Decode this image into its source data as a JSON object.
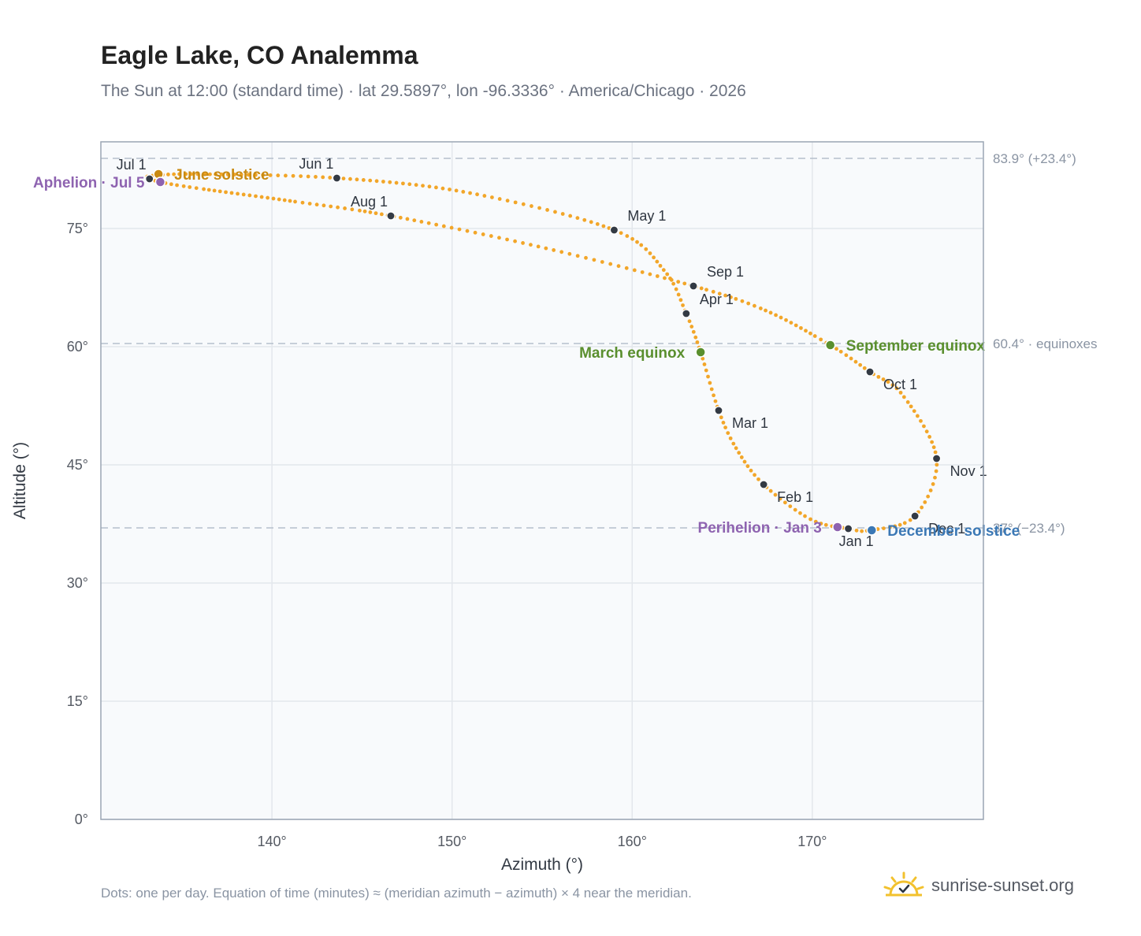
{
  "header": {
    "title": "Eagle Lake, CO Analemma",
    "subtitle": "The Sun at 12:00 (standard time) · lat 29.5897°, lon -96.3336° · America/Chicago · 2026"
  },
  "footer": {
    "note": "Dots: one per day. Equation of time (minutes) ≈ (meridian azimuth − azimuth) × 4 near the meridian.",
    "brand": "sunrise-sunset.org"
  },
  "colors": {
    "curve": "#f2a629",
    "month_marker": "#333a44",
    "solstice_june": "#c98a12",
    "equinox": "#5a8f2e",
    "solstice_december": "#3b78b5",
    "apsis": "#8e63b0",
    "grid": "#e3e7ec",
    "plot_background": "#f8fafc",
    "frame": "#9aa5b4"
  },
  "chart_data": {
    "type": "scatter",
    "xlabel": "Azimuth (°)",
    "ylabel": "Altitude (°)",
    "xlim": [
      130.5,
      179.5
    ],
    "ylim": [
      0,
      86
    ],
    "x_ticks": [
      140,
      150,
      160,
      170
    ],
    "x_tick_labels": [
      "140°",
      "150°",
      "160°",
      "170°"
    ],
    "y_ticks": [
      0,
      15,
      30,
      45,
      60,
      75
    ],
    "y_tick_labels": [
      "0°",
      "15°",
      "30°",
      "45°",
      "60°",
      "75°"
    ],
    "grid": true,
    "reference_lines": [
      {
        "y": 83.9,
        "label": "83.9° (+23.4°)"
      },
      {
        "y": 60.4,
        "label": "60.4° · equinoxes"
      },
      {
        "y": 37.0,
        "label": "37° (−23.4°)"
      }
    ],
    "curve_knots": [
      {
        "x": 172.0,
        "y": 36.9
      },
      {
        "x": 169.9,
        "y": 38.1
      },
      {
        "x": 167.3,
        "y": 42.5
      },
      {
        "x": 165.8,
        "y": 47.0
      },
      {
        "x": 164.8,
        "y": 51.9
      },
      {
        "x": 163.8,
        "y": 59.3
      },
      {
        "x": 163.0,
        "y": 64.2
      },
      {
        "x": 161.8,
        "y": 69.6
      },
      {
        "x": 159.0,
        "y": 74.8
      },
      {
        "x": 151.0,
        "y": 79.5
      },
      {
        "x": 143.6,
        "y": 81.4
      },
      {
        "x": 136.0,
        "y": 81.9
      },
      {
        "x": 133.4,
        "y": 81.7
      },
      {
        "x": 133.2,
        "y": 81.3
      },
      {
        "x": 135.0,
        "y": 80.4
      },
      {
        "x": 141.0,
        "y": 78.5
      },
      {
        "x": 146.6,
        "y": 76.6
      },
      {
        "x": 155.0,
        "y": 72.6
      },
      {
        "x": 163.4,
        "y": 67.7
      },
      {
        "x": 167.5,
        "y": 64.5
      },
      {
        "x": 171.0,
        "y": 60.2
      },
      {
        "x": 173.2,
        "y": 56.8
      },
      {
        "x": 175.0,
        "y": 53.9
      },
      {
        "x": 176.9,
        "y": 45.8
      },
      {
        "x": 175.7,
        "y": 38.5
      },
      {
        "x": 173.2,
        "y": 36.7
      },
      {
        "x": 172.0,
        "y": 36.9
      }
    ],
    "month_markers": [
      {
        "label": "Jan 1",
        "x": 172.0,
        "y": 36.9,
        "pos": "below"
      },
      {
        "label": "Feb 1",
        "x": 167.3,
        "y": 42.5,
        "pos": "right-below"
      },
      {
        "label": "Mar 1",
        "x": 164.8,
        "y": 51.9,
        "pos": "right-below"
      },
      {
        "label": "Apr 1",
        "x": 163.0,
        "y": 64.2,
        "pos": "right-above"
      },
      {
        "label": "May 1",
        "x": 159.0,
        "y": 74.8,
        "pos": "right-above"
      },
      {
        "label": "Jun 1",
        "x": 143.6,
        "y": 81.4,
        "pos": "above-left"
      },
      {
        "label": "Jul 1",
        "x": 133.2,
        "y": 81.3,
        "pos": "above-left"
      },
      {
        "label": "Aug 1",
        "x": 146.6,
        "y": 76.6,
        "pos": "above-left"
      },
      {
        "label": "Sep 1",
        "x": 163.4,
        "y": 67.7,
        "pos": "right-above"
      },
      {
        "label": "Oct 1",
        "x": 173.2,
        "y": 56.8,
        "pos": "right-below"
      },
      {
        "label": "Nov 1",
        "x": 176.9,
        "y": 45.8,
        "pos": "right-below"
      },
      {
        "label": "Dec 1",
        "x": 175.7,
        "y": 38.5,
        "pos": "right-below"
      }
    ],
    "events": [
      {
        "label": "June solstice",
        "x": 133.7,
        "y": 81.9,
        "color": "#c98a12",
        "anchor": "start"
      },
      {
        "label": "Aphelion · Jul 5",
        "x": 133.8,
        "y": 80.9,
        "color": "#8e63b0",
        "anchor": "end"
      },
      {
        "label": "March equinox",
        "x": 163.8,
        "y": 59.3,
        "color": "#5a8f2e",
        "anchor": "end"
      },
      {
        "label": "September equinox",
        "x": 171.0,
        "y": 60.2,
        "color": "#5a8f2e",
        "anchor": "start"
      },
      {
        "label": "Perihelion · Jan 3",
        "x": 171.4,
        "y": 37.1,
        "color": "#8e63b0",
        "anchor": "end"
      },
      {
        "label": "December solstice",
        "x": 173.3,
        "y": 36.7,
        "color": "#3b78b5",
        "anchor": "start"
      }
    ]
  }
}
